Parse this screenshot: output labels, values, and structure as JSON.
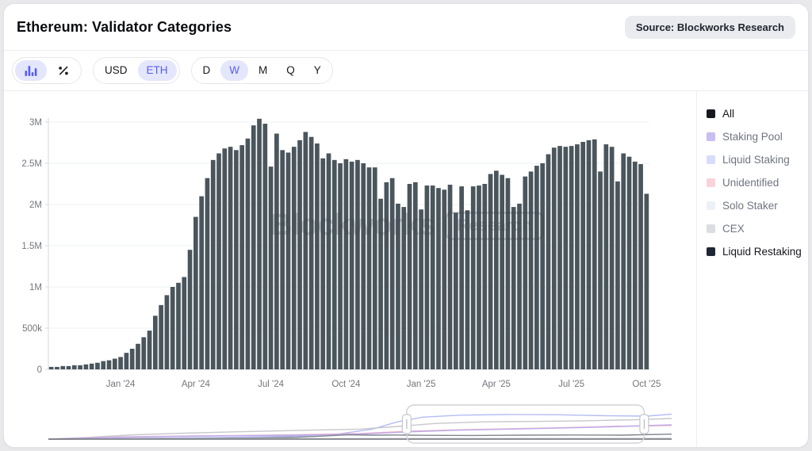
{
  "header": {
    "title": "Ethereum: Validator Categories",
    "source_badge": "Source: Blockworks Research"
  },
  "toolbar": {
    "chart_type": {
      "options": [
        "bar-chart",
        "percent-change"
      ],
      "selected": "bar-chart"
    },
    "currency": {
      "options": [
        "USD",
        "ETH"
      ],
      "selected": "ETH"
    },
    "interval": {
      "options": [
        "D",
        "W",
        "M",
        "Q",
        "Y"
      ],
      "selected": "W"
    }
  },
  "watermark": {
    "brand": "Blockworks",
    "sub": "Research"
  },
  "legend": {
    "items": [
      {
        "label": "All",
        "color": "#17191f",
        "active": true
      },
      {
        "label": "Staking Pool",
        "color": "#c9bdf2",
        "active": false
      },
      {
        "label": "Liquid Staking",
        "color": "#d7ddfa",
        "active": false
      },
      {
        "label": "Unidentified",
        "color": "#f9d2da",
        "active": false
      },
      {
        "label": "Solo Staker",
        "color": "#eef0f8",
        "active": false
      },
      {
        "label": "CEX",
        "color": "#dcdde1",
        "active": false
      },
      {
        "label": "Liquid Restaking",
        "color": "#1d2633",
        "active": true
      }
    ]
  },
  "chart_data": {
    "type": "bar",
    "title": "Ethereum: Validator Categories",
    "series_name": "All",
    "unit": "validators (millions)",
    "frequency": "weekly",
    "x_start": "Oct 2023",
    "x_end": "Oct 2025",
    "ylim": [
      0,
      3.2
    ],
    "bar_color": "#4a555c",
    "grid": true,
    "legend_position": "right",
    "y_ticks": [
      {
        "value": 0,
        "label": "0"
      },
      {
        "value": 0.5,
        "label": "500k"
      },
      {
        "value": 1,
        "label": "1M"
      },
      {
        "value": 1.5,
        "label": "1.5M"
      },
      {
        "value": 2,
        "label": "2M"
      },
      {
        "value": 2.5,
        "label": "2.5M"
      },
      {
        "value": 3,
        "label": "3M"
      }
    ],
    "x_ticks": [
      {
        "index": 12,
        "label": "Jan '24"
      },
      {
        "index": 25,
        "label": "Apr '24"
      },
      {
        "index": 38,
        "label": "Jul '24"
      },
      {
        "index": 51,
        "label": "Oct '24"
      },
      {
        "index": 64,
        "label": "Jan '25"
      },
      {
        "index": 77,
        "label": "Apr '25"
      },
      {
        "index": 90,
        "label": "Jul '25"
      },
      {
        "index": 103,
        "label": "Oct '25"
      }
    ],
    "values": [
      0.03,
      0.03,
      0.04,
      0.04,
      0.05,
      0.05,
      0.06,
      0.07,
      0.08,
      0.1,
      0.11,
      0.13,
      0.15,
      0.2,
      0.25,
      0.31,
      0.39,
      0.47,
      0.65,
      0.78,
      0.9,
      1.0,
      1.05,
      1.12,
      1.45,
      1.85,
      2.1,
      2.32,
      2.54,
      2.62,
      2.68,
      2.7,
      2.66,
      2.72,
      2.8,
      2.96,
      3.04,
      2.98,
      2.46,
      2.86,
      2.66,
      2.63,
      2.7,
      2.78,
      2.88,
      2.82,
      2.74,
      2.56,
      2.62,
      2.54,
      2.5,
      2.55,
      2.52,
      2.54,
      2.5,
      2.45,
      2.45,
      2.07,
      2.27,
      2.32,
      2.01,
      1.97,
      2.25,
      2.27,
      1.94,
      2.23,
      2.23,
      2.2,
      2.18,
      2.24,
      1.9,
      2.22,
      1.93,
      2.22,
      2.23,
      2.25,
      2.37,
      2.41,
      2.36,
      2.32,
      1.97,
      2.01,
      2.34,
      2.4,
      2.47,
      2.5,
      2.61,
      2.69,
      2.71,
      2.7,
      2.71,
      2.73,
      2.76,
      2.78,
      2.79,
      2.4,
      2.73,
      2.7,
      2.28,
      2.62,
      2.58,
      2.52,
      2.49,
      2.13
    ],
    "navigator": {
      "brush": {
        "start": 0.575,
        "end": 0.956
      },
      "series": [
        {
          "name": "Liquid Staking",
          "color": "#b4bdf4",
          "points": [
            [
              0,
              0
            ],
            [
              0.08,
              0.01
            ],
            [
              0.18,
              0.03
            ],
            [
              0.28,
              0.05
            ],
            [
              0.38,
              0.08
            ],
            [
              0.46,
              0.14
            ],
            [
              0.52,
              0.3
            ],
            [
              0.56,
              0.52
            ],
            [
              0.6,
              0.66
            ],
            [
              0.66,
              0.72
            ],
            [
              0.74,
              0.74
            ],
            [
              0.82,
              0.73
            ],
            [
              0.9,
              0.7
            ],
            [
              0.96,
              0.69
            ],
            [
              1,
              0.75
            ]
          ]
        },
        {
          "name": "CEX",
          "color": "#c7c8cd",
          "points": [
            [
              0,
              0
            ],
            [
              0.06,
              0.05
            ],
            [
              0.14,
              0.13
            ],
            [
              0.22,
              0.18
            ],
            [
              0.3,
              0.22
            ],
            [
              0.4,
              0.26
            ],
            [
              0.5,
              0.3
            ],
            [
              0.56,
              0.38
            ],
            [
              0.62,
              0.47
            ],
            [
              0.7,
              0.52
            ],
            [
              0.78,
              0.53
            ],
            [
              0.86,
              0.55
            ],
            [
              0.94,
              0.58
            ],
            [
              1,
              0.62
            ]
          ]
        },
        {
          "name": "Unidentified",
          "color": "#f3b3c6",
          "points": [
            [
              0,
              0
            ],
            [
              0.1,
              0.06
            ],
            [
              0.2,
              0.09
            ],
            [
              0.3,
              0.11
            ],
            [
              0.4,
              0.13
            ],
            [
              0.5,
              0.17
            ],
            [
              0.58,
              0.24
            ],
            [
              0.66,
              0.28
            ],
            [
              0.74,
              0.31
            ],
            [
              0.82,
              0.34
            ],
            [
              0.9,
              0.38
            ],
            [
              1,
              0.41
            ]
          ]
        },
        {
          "name": "Staking Pool",
          "color": "#bcaaeb",
          "points": [
            [
              0,
              0
            ],
            [
              0.1,
              0.05
            ],
            [
              0.2,
              0.08
            ],
            [
              0.3,
              0.1
            ],
            [
              0.4,
              0.12
            ],
            [
              0.5,
              0.15
            ],
            [
              0.58,
              0.22
            ],
            [
              0.66,
              0.27
            ],
            [
              0.74,
              0.3
            ],
            [
              0.82,
              0.33
            ],
            [
              0.9,
              0.37
            ],
            [
              1,
              0.43
            ]
          ]
        },
        {
          "name": "Liquid Restaking",
          "color": "#7f858e",
          "points": [
            [
              0,
              0
            ],
            [
              0.12,
              0.01
            ],
            [
              0.22,
              0.02
            ],
            [
              0.32,
              0.03
            ],
            [
              0.4,
              0.06
            ],
            [
              0.44,
              0.09
            ],
            [
              0.48,
              0.13
            ],
            [
              0.52,
              0.12
            ],
            [
              0.56,
              0.125
            ],
            [
              0.6,
              0.115
            ],
            [
              0.68,
              0.11
            ],
            [
              0.76,
              0.12
            ],
            [
              0.84,
              0.125
            ],
            [
              0.92,
              0.12
            ],
            [
              1,
              0.15
            ]
          ]
        },
        {
          "name": "Solo Staker",
          "color": "#dadbe2",
          "points": [
            [
              0,
              0
            ],
            [
              0.3,
              0.015
            ],
            [
              0.6,
              0.025
            ],
            [
              1,
              0.03
            ]
          ]
        }
      ]
    }
  }
}
